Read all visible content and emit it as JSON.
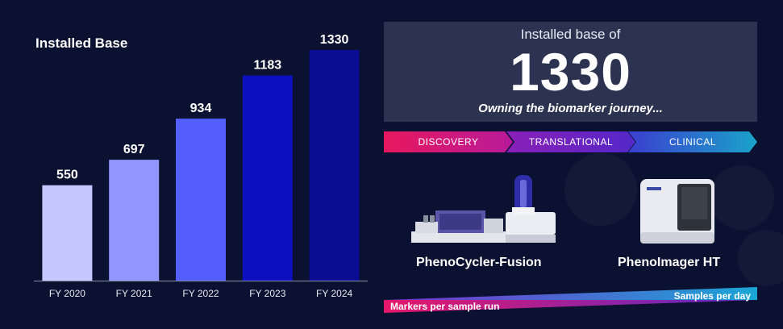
{
  "chart_data": {
    "type": "bar",
    "title": "Installed Base",
    "categories": [
      "FY 2020",
      "FY 2021",
      "FY 2022",
      "FY 2023",
      "FY 2024"
    ],
    "values": [
      550,
      697,
      934,
      1183,
      1330
    ],
    "bar_colors": [
      "#c5c8ff",
      "#9096fb",
      "#545efa",
      "#0c0fc0",
      "#0a0c92"
    ],
    "xlabel": "",
    "ylabel": "",
    "ylim": [
      0,
      1330
    ],
    "grid": false,
    "legend": "none"
  },
  "hero": {
    "label": "Installed base of",
    "number": "1330",
    "tagline": "Owning the biomarker journey..."
  },
  "journey": {
    "stages": [
      "DISCOVERY",
      "TRANSLATIONAL",
      "CLINICAL"
    ]
  },
  "products": {
    "fusion": "PhenoCycler-Fusion",
    "imager": "PhenoImager HT"
  },
  "scale": {
    "samples_label": "Samples per day",
    "markers_label": "Markers per sample run"
  },
  "colors": {
    "background": "#0b1130",
    "panel": "#2b3350",
    "axis": "#8a90a8"
  }
}
